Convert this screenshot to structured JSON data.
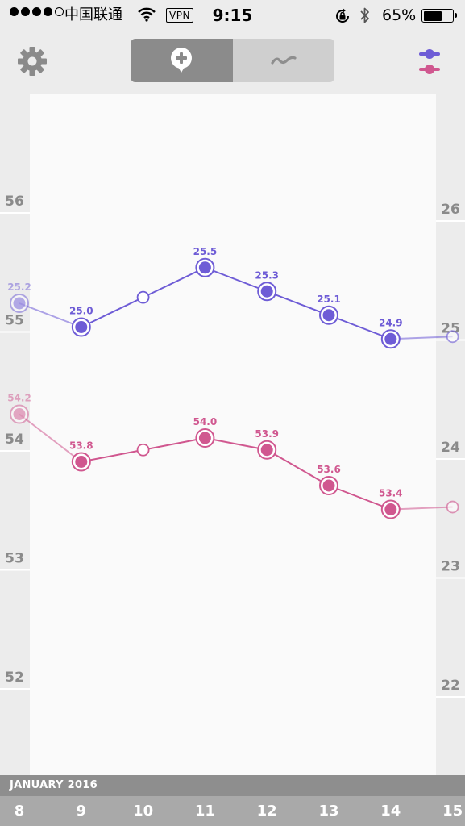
{
  "status_bar": {
    "carrier": "中国联通",
    "vpn": "VPN",
    "time": "9:15",
    "battery_percent": "65%",
    "battery_level": 0.65,
    "signal_bars_filled": 4,
    "signal_bars_total": 5
  },
  "toolbar": {
    "settings_icon": "gear-icon",
    "segments": [
      {
        "icon": "add-entry-icon",
        "selected": true
      },
      {
        "icon": "trend-wave-icon",
        "selected": false
      }
    ],
    "series_toggle_icon": "series-filter-icon"
  },
  "colors": {
    "purple": "#6e5cd6",
    "pink": "#d0578f",
    "background": "#ececec",
    "plot": "#fafafa"
  },
  "chart_data": {
    "type": "line",
    "x": [
      8,
      9,
      10,
      11,
      12,
      13,
      14,
      15
    ],
    "x_tick_labels": [
      "8",
      "9",
      "10",
      "11",
      "12",
      "13",
      "14",
      "15"
    ],
    "x_group_label": "JANUARY 2016",
    "left_axis": {
      "ticks": [
        "56",
        "55",
        "54",
        "53",
        "52"
      ],
      "values": [
        56,
        55,
        54,
        53,
        52
      ]
    },
    "right_axis": {
      "ticks": [
        "26",
        "25",
        "24",
        "23",
        "22"
      ],
      "values": [
        26,
        25,
        24,
        23,
        22
      ]
    },
    "series": [
      {
        "color": "#6e5cd6",
        "axis": "right",
        "x": [
          8,
          9,
          10,
          11,
          12,
          13,
          14,
          15
        ],
        "values": [
          25.2,
          25.0,
          25.25,
          25.5,
          25.3,
          25.1,
          24.9,
          24.92
        ],
        "labels": [
          "25.2",
          "25.0",
          "",
          "25.5",
          "25.3",
          "25.1",
          "24.9",
          ""
        ],
        "measured": [
          true,
          true,
          false,
          true,
          true,
          true,
          true,
          false
        ]
      },
      {
        "color": "#d0578f",
        "axis": "left",
        "x": [
          8,
          9,
          10,
          11,
          12,
          13,
          14,
          15
        ],
        "values": [
          54.2,
          53.8,
          53.9,
          54.0,
          53.9,
          53.6,
          53.4,
          53.42
        ],
        "labels": [
          "54.2",
          "53.8",
          "",
          "54.0",
          "53.9",
          "53.6",
          "53.4",
          ""
        ],
        "measured": [
          true,
          true,
          false,
          true,
          true,
          true,
          true,
          false
        ]
      }
    ]
  }
}
